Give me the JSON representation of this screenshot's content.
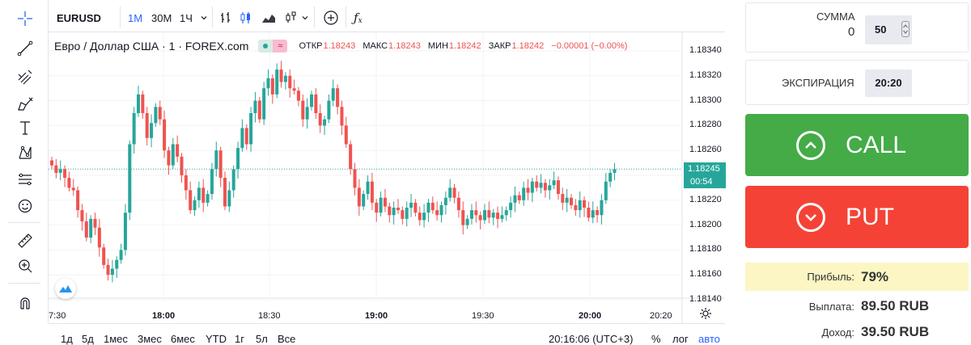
{
  "toolbar": {
    "symbol": "EURUSD",
    "intervals": [
      "1М",
      "30М",
      "1Ч"
    ],
    "active_interval": "1М"
  },
  "legend": {
    "title": "Евро / Доллар США · 1 · FOREX.com",
    "open_label": "ОТКР",
    "open": "1.18243",
    "high_label": "МАКС",
    "high": "1.18243",
    "low_label": "МИН",
    "low": "1.18242",
    "close_label": "ЗАКР",
    "close": "1.18242",
    "change": "−0.00001 (−0.00%)"
  },
  "price_axis": {
    "ticks": [
      "1.18340",
      "1.18320",
      "1.18300",
      "1.18280",
      "1.18260",
      "1.18240",
      "1.18220",
      "1.18200",
      "1.18180",
      "1.18160",
      "1.18140"
    ],
    "current_price": "1.18245",
    "countdown": "00:54"
  },
  "time_axis": {
    "ticks": [
      "7:30",
      "18:00",
      "18:30",
      "19:00",
      "19:30",
      "20:00",
      "20:20"
    ],
    "bold_ticks": [
      "18:00",
      "19:00",
      "20:00"
    ]
  },
  "bottom": {
    "ranges": [
      "1д",
      "5д",
      "1мес",
      "3мес",
      "6мес",
      "YTD",
      "1г",
      "5л",
      "Все"
    ],
    "clock": "20:16:06 (UTC+3)",
    "percent": "%",
    "log": "лог",
    "auto": "авто"
  },
  "trade": {
    "amount_label": "СУММА",
    "amount_value": "50",
    "amount_currency_glyph": "0",
    "expiration_label": "ЭКСПИРАЦИЯ",
    "expiration_value": "20:20",
    "call_label": "CALL",
    "put_label": "PUT",
    "profit_label": "Прибыль:",
    "profit_value": "79%",
    "payout_label": "Выплата:",
    "payout_value": "89.50 RUB",
    "income_label": "Доход:",
    "income_value": "39.50 RUB"
  },
  "colors": {
    "up": "#26a69a",
    "down": "#ef5350",
    "call": "#44ab47",
    "put": "#f44336",
    "accent": "#2962ff",
    "profit_bg": "#fbf6c4"
  },
  "chart_data": {
    "type": "candlestick",
    "symbol": "EURUSD",
    "ylim": [
      1.1814,
      1.1834
    ],
    "x": [
      "7:30",
      "18:00",
      "18:30",
      "19:00",
      "19:30",
      "20:00",
      "20:20"
    ],
    "closes": [
      1.18248,
      1.18242,
      1.18245,
      1.18238,
      1.1823,
      1.18228,
      1.18212,
      1.18203,
      1.1819,
      1.18205,
      1.18198,
      1.18182,
      1.18168,
      1.1816,
      1.18165,
      1.18172,
      1.1818,
      1.1821,
      1.18265,
      1.1829,
      1.18305,
      1.1829,
      1.1827,
      1.18282,
      1.18295,
      1.18285,
      1.1826,
      1.18248,
      1.18265,
      1.18255,
      1.1824,
      1.18228,
      1.18212,
      1.1822,
      1.1823,
      1.18218,
      1.18225,
      1.18245,
      1.1826,
      1.18238,
      1.18215,
      1.18228,
      1.18245,
      1.18262,
      1.18278,
      1.18265,
      1.1829,
      1.183,
      1.18285,
      1.1831,
      1.18318,
      1.18305,
      1.18325,
      1.18315,
      1.1832,
      1.1831,
      1.18308,
      1.183,
      1.18285,
      1.18295,
      1.18305,
      1.1829,
      1.1828,
      1.18285,
      1.183,
      1.1831,
      1.18295,
      1.1828,
      1.18265,
      1.18245,
      1.1823,
      1.18215,
      1.18225,
      1.18235,
      1.18218,
      1.1821,
      1.18222,
      1.18215,
      1.18208,
      1.18214,
      1.18212,
      1.18205,
      1.18214,
      1.18218,
      1.1821,
      1.18204,
      1.1821,
      1.18218,
      1.18212,
      1.18208,
      1.18216,
      1.18222,
      1.1823,
      1.18222,
      1.18212,
      1.182,
      1.18205,
      1.18212,
      1.18208,
      1.18204,
      1.18212,
      1.18206,
      1.1821,
      1.18205,
      1.18208,
      1.18212,
      1.18218,
      1.18224,
      1.1822,
      1.1823,
      1.18226,
      1.18235,
      1.1823,
      1.18234,
      1.18228,
      1.18232,
      1.18236,
      1.18225,
      1.18218,
      1.18222,
      1.18216,
      1.18212,
      1.1822,
      1.18214,
      1.18206,
      1.18212,
      1.18208,
      1.1822,
      1.18235,
      1.18242,
      1.18245
    ]
  }
}
